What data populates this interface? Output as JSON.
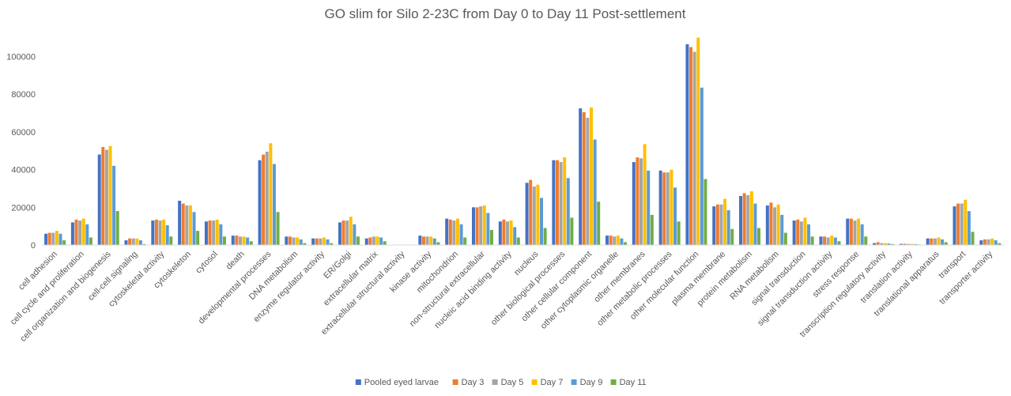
{
  "chart_data": {
    "type": "bar",
    "title": "GO slim for Silo 2-23C from Day 0 to Day 11 Post-settlement",
    "xlabel": "",
    "ylabel": "",
    "ylim": [
      0,
      120000
    ],
    "yticks": [
      0,
      20000,
      40000,
      60000,
      80000,
      100000
    ],
    "ytick_labels": [
      "0",
      "20000",
      "40000",
      "60000",
      "80000",
      "100000"
    ],
    "grid": false,
    "legend_position": "bottom",
    "categories": [
      "cell adhesion",
      "cell cycle and proliferation",
      "cell organization and biogenesis",
      "cell-cell signaling",
      "cytoskeletal activity",
      "cytoskeleton",
      "cytosol",
      "death",
      "developmental processes",
      "DNA metabolism",
      "enzyme regulator activity",
      "ER/Golgi",
      "extracellular matrix",
      "extracellular structural activity",
      "kinase activity",
      "mitochondrion",
      "non-structural extracellular",
      "nucleic acid binding activity",
      "nucleus",
      "other biological processes",
      "other cellular component",
      "other cytoplasmic organelle",
      "other membranes",
      "other metabolic processes",
      "other molecular function",
      "plasma membrane",
      "protein metabolism",
      "RNA metabolism",
      "signal transduction",
      "signal transduction activity",
      "stress response",
      "transcription regulatory activity",
      "translation activity",
      "translational apparatus",
      "transport",
      "transporter activity"
    ],
    "series": [
      {
        "name": "Pooled eyed larvae",
        "color": "#4472c4",
        "values": [
          6000,
          12000,
          48000,
          2500,
          13000,
          23500,
          12500,
          5000,
          45000,
          4500,
          3500,
          12000,
          3500,
          0,
          5000,
          14000,
          20000,
          12500,
          33000,
          45000,
          72500,
          5000,
          44000,
          39500,
          106500,
          20500,
          26000,
          21000,
          13000,
          4500,
          14000,
          1000,
          600,
          3500,
          20500,
          2500
        ]
      },
      {
        "name": "Day 3",
        "color": "#ed7d31",
        "values": [
          6500,
          13500,
          52000,
          3500,
          13500,
          22000,
          13000,
          5000,
          48000,
          4500,
          3500,
          13000,
          4000,
          0,
          4500,
          13500,
          20000,
          13500,
          34500,
          45000,
          70500,
          5000,
          46500,
          38500,
          105000,
          21500,
          27500,
          22500,
          13500,
          4500,
          14000,
          1500,
          700,
          3500,
          22000,
          3000
        ]
      },
      {
        "name": "Day 5",
        "color": "#a5a5a5",
        "values": [
          6500,
          13000,
          50500,
          3500,
          13000,
          21000,
          13000,
          4500,
          49500,
          4000,
          3500,
          13000,
          4500,
          0,
          4500,
          13000,
          20500,
          12500,
          31000,
          44000,
          67500,
          4500,
          46000,
          38500,
          102500,
          21500,
          26500,
          20000,
          12500,
          4000,
          13000,
          1000,
          600,
          3500,
          22000,
          3000
        ]
      },
      {
        "name": "Day 7",
        "color": "#ffc000",
        "values": [
          7500,
          14000,
          52500,
          3500,
          13500,
          21000,
          13500,
          4500,
          54000,
          4000,
          4000,
          15000,
          4500,
          0,
          4500,
          14000,
          21000,
          13000,
          32000,
          46500,
          73000,
          5000,
          53500,
          40000,
          110000,
          24500,
          28500,
          21500,
          14500,
          5000,
          14000,
          1000,
          600,
          4000,
          24000,
          3500
        ]
      },
      {
        "name": "Day 9",
        "color": "#5b9bd5",
        "values": [
          6000,
          11000,
          42000,
          2500,
          10500,
          17500,
          11000,
          4000,
          43000,
          3000,
          3000,
          11000,
          4000,
          0,
          3500,
          11000,
          17000,
          9500,
          25000,
          35500,
          56000,
          3500,
          39500,
          30500,
          83500,
          18500,
          22000,
          16000,
          11000,
          4000,
          11000,
          800,
          500,
          3000,
          18000,
          2500
        ]
      },
      {
        "name": "Day 11",
        "color": "#70ad47",
        "values": [
          2500,
          4000,
          18000,
          500,
          4500,
          7500,
          4500,
          2000,
          17500,
          1000,
          1000,
          4500,
          2000,
          0,
          1500,
          4000,
          8000,
          4000,
          9000,
          14500,
          23000,
          1500,
          16000,
          12500,
          35000,
          8500,
          9000,
          6500,
          4500,
          2000,
          4500,
          500,
          300,
          1500,
          7000,
          1000
        ]
      }
    ]
  }
}
